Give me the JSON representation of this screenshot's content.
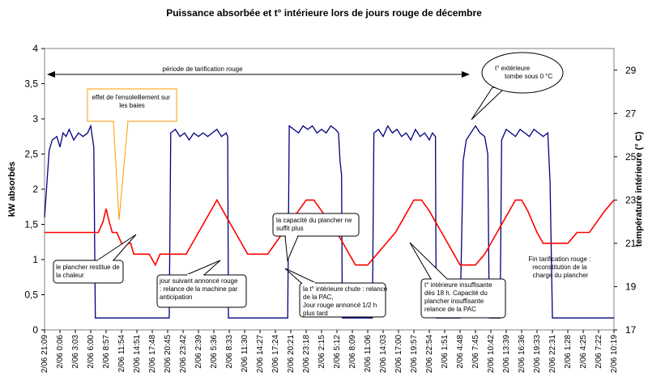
{
  "chart_data": {
    "type": "line",
    "title": "Puissance absorbée et t° intérieure lors de jours rouge de décembre",
    "ylabel": "kW absorbés",
    "y2label": "température intérieure (° C)",
    "ylim": [
      0,
      4
    ],
    "y2lim": [
      17,
      30
    ],
    "y_ticks": [
      "0",
      "0,5",
      "1",
      "1,5",
      "2",
      "2,5",
      "3",
      "3,5",
      "4"
    ],
    "y2_ticks": [
      "17",
      "19",
      "21",
      "23",
      "25",
      "27",
      "29"
    ],
    "grid": false,
    "x_ticks": [
      "2/06 21:09",
      "2/06 0:06",
      "2/06 3:03",
      "2/06 6:00",
      "2/06 8:57",
      "2/06 11:54",
      "2/06 14:51",
      "2/06 17:48",
      "2/06 20:45",
      "2/06 23:42",
      "2/06 2:39",
      "2/06 5:36",
      "2/06 8:33",
      "2/06 11:30",
      "2/06 14:27",
      "2/06 17:24",
      "2/06 20:21",
      "2/06 23:18",
      "2/06 2:15",
      "2/06 5:12",
      "2/06 8:09",
      "2/06 11:06",
      "2/06 14:03",
      "2/06 17:00",
      "2/06 19:57",
      "2/06 22:54",
      "2/06 1:51",
      "2/06 4:48",
      "2/06 7:45",
      "2/06 10:42",
      "2/06 13:39",
      "2/06 16:36",
      "2/06 19:33",
      "2/06 22:31",
      "2/06 1:28",
      "2/06 4:25",
      "2/06 7:22",
      "2/06 10:19"
    ],
    "series": [
      {
        "axis": "left",
        "color": "#00007f",
        "points": [
          [
            0,
            1.6
          ],
          [
            0.3,
            2.55
          ],
          [
            0.5,
            2.7
          ],
          [
            0.8,
            2.75
          ],
          [
            1.0,
            2.6
          ],
          [
            1.2,
            2.8
          ],
          [
            1.4,
            2.75
          ],
          [
            1.6,
            2.85
          ],
          [
            1.9,
            2.7
          ],
          [
            2.2,
            2.8
          ],
          [
            2.5,
            2.75
          ],
          [
            2.8,
            2.8
          ],
          [
            3.0,
            2.9
          ],
          [
            3.2,
            2.6
          ],
          [
            3.3,
            0.17
          ],
          [
            8.1,
            0.17
          ],
          [
            8.2,
            2.8
          ],
          [
            8.5,
            2.85
          ],
          [
            8.8,
            2.75
          ],
          [
            9.1,
            2.8
          ],
          [
            9.4,
            2.7
          ],
          [
            9.7,
            2.8
          ],
          [
            10.0,
            2.75
          ],
          [
            10.3,
            2.8
          ],
          [
            10.6,
            2.75
          ],
          [
            10.9,
            2.8
          ],
          [
            11.2,
            2.85
          ],
          [
            11.5,
            2.75
          ],
          [
            11.8,
            2.8
          ],
          [
            11.9,
            2.75
          ],
          [
            11.95,
            0.17
          ],
          [
            15.8,
            0.17
          ],
          [
            15.9,
            2.9
          ],
          [
            16.2,
            2.85
          ],
          [
            16.5,
            2.8
          ],
          [
            16.8,
            2.9
          ],
          [
            17.1,
            2.85
          ],
          [
            17.4,
            2.9
          ],
          [
            17.7,
            2.8
          ],
          [
            18.0,
            2.85
          ],
          [
            18.3,
            2.8
          ],
          [
            18.6,
            2.9
          ],
          [
            18.9,
            2.85
          ],
          [
            19.1,
            2.8
          ],
          [
            19.2,
            2.4
          ],
          [
            19.3,
            2.2
          ],
          [
            19.35,
            0.17
          ],
          [
            21.3,
            0.17
          ],
          [
            21.4,
            2.8
          ],
          [
            21.7,
            2.85
          ],
          [
            22.0,
            2.75
          ],
          [
            22.3,
            2.9
          ],
          [
            22.6,
            2.8
          ],
          [
            22.9,
            2.85
          ],
          [
            23.2,
            2.75
          ],
          [
            23.5,
            2.8
          ],
          [
            23.8,
            2.7
          ],
          [
            24.1,
            2.85
          ],
          [
            24.4,
            2.75
          ],
          [
            24.7,
            2.8
          ],
          [
            25.0,
            2.7
          ],
          [
            25.2,
            2.8
          ],
          [
            25.4,
            2.75
          ],
          [
            25.45,
            0.17
          ],
          [
            27.0,
            0.17
          ],
          [
            27.2,
            2.4
          ],
          [
            27.4,
            2.7
          ],
          [
            27.7,
            2.8
          ],
          [
            28.0,
            2.9
          ],
          [
            28.3,
            2.8
          ],
          [
            28.6,
            2.75
          ],
          [
            28.8,
            2.5
          ],
          [
            28.9,
            0.17
          ],
          [
            29.6,
            0.17
          ],
          [
            29.7,
            2.7
          ],
          [
            30.0,
            2.85
          ],
          [
            30.3,
            2.8
          ],
          [
            30.6,
            2.75
          ],
          [
            30.9,
            2.85
          ],
          [
            31.2,
            2.8
          ],
          [
            31.5,
            2.75
          ],
          [
            31.8,
            2.85
          ],
          [
            32.1,
            2.8
          ],
          [
            32.4,
            2.75
          ],
          [
            32.7,
            2.8
          ],
          [
            32.85,
            2.1
          ],
          [
            33.0,
            0.17
          ],
          [
            37.0,
            0.17
          ]
        ]
      },
      {
        "axis": "right",
        "color": "#ff0000",
        "points": [
          [
            0,
            21.5
          ],
          [
            3.5,
            21.5
          ],
          [
            3.8,
            22.0
          ],
          [
            4.0,
            22.6
          ],
          [
            4.2,
            22.0
          ],
          [
            4.4,
            21.5
          ],
          [
            4.7,
            21.5
          ],
          [
            5.0,
            21.0
          ],
          [
            5.6,
            21.0
          ],
          [
            5.8,
            20.5
          ],
          [
            6.8,
            20.5
          ],
          [
            7.2,
            20.0
          ],
          [
            7.5,
            20.5
          ],
          [
            9.2,
            20.5
          ],
          [
            9.6,
            21.0
          ],
          [
            10.0,
            21.5
          ],
          [
            10.4,
            22.0
          ],
          [
            10.8,
            22.5
          ],
          [
            11.2,
            23.0
          ],
          [
            11.6,
            22.5
          ],
          [
            12.0,
            22.0
          ],
          [
            12.4,
            21.5
          ],
          [
            12.8,
            21.0
          ],
          [
            13.2,
            20.5
          ],
          [
            14.5,
            20.5
          ],
          [
            15.0,
            21.0
          ],
          [
            15.5,
            21.5
          ],
          [
            16.0,
            22.0
          ],
          [
            16.5,
            22.5
          ],
          [
            17.0,
            23.0
          ],
          [
            17.5,
            23.0
          ],
          [
            18.0,
            22.5
          ],
          [
            18.5,
            22.0
          ],
          [
            19.0,
            21.5
          ],
          [
            19.4,
            21.0
          ],
          [
            19.8,
            20.5
          ],
          [
            20.2,
            20.0
          ],
          [
            21.0,
            20.0
          ],
          [
            21.6,
            20.5
          ],
          [
            22.2,
            21.0
          ],
          [
            22.8,
            21.5
          ],
          [
            23.2,
            22.0
          ],
          [
            23.6,
            22.5
          ],
          [
            24.0,
            23.0
          ],
          [
            24.5,
            23.0
          ],
          [
            25.0,
            22.5
          ],
          [
            25.4,
            22.0
          ],
          [
            25.8,
            21.5
          ],
          [
            26.2,
            21.0
          ],
          [
            26.6,
            20.5
          ],
          [
            27.0,
            20.0
          ],
          [
            28.0,
            20.0
          ],
          [
            28.6,
            20.5
          ],
          [
            29.0,
            21.0
          ],
          [
            29.4,
            21.5
          ],
          [
            29.8,
            22.0
          ],
          [
            30.2,
            22.5
          ],
          [
            30.6,
            23.0
          ],
          [
            31.0,
            23.0
          ],
          [
            31.4,
            22.5
          ],
          [
            31.7,
            22.0
          ],
          [
            32.0,
            21.5
          ],
          [
            32.4,
            21.0
          ],
          [
            33.5,
            21.0
          ],
          [
            34.0,
            21.0
          ],
          [
            34.6,
            21.5
          ],
          [
            35.4,
            21.5
          ],
          [
            35.9,
            22.0
          ],
          [
            36.4,
            22.5
          ],
          [
            37.0,
            23.0
          ]
        ]
      }
    ],
    "annotations": {
      "period_label": "période de tarification rouge",
      "sun": "effet de l'ensoleillement sur les baies",
      "floor_release": "le plancher restitue de la chaleur",
      "anticipation": "jour suivant annoncé rouge : relance de la machine par anticipation",
      "floor_insufficient": "la capacité du plancher ne suffit plus",
      "temp_drop": "la t° intérieure chute : relance de la PAC, Jour rouge annoncé 1/2 h plus tard",
      "temp_low": "t° intérieure insuffisante dès 18 h. Capacité du plancher insuffisante relance de la PAC",
      "outside_temp": "t° extérieure tombe sous 0 °C",
      "end_red": "Fin tarification rouge : reconstitution de la charge du plancher"
    }
  }
}
